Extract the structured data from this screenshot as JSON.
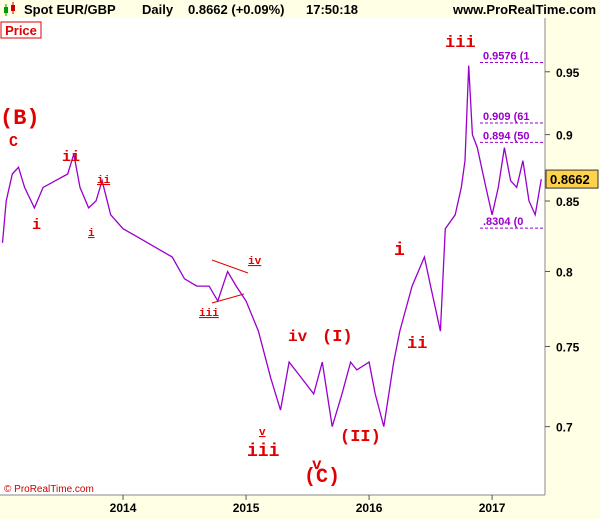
{
  "header": {
    "symbol": "Spot EUR/GBP",
    "period": "Daily",
    "quote": "0.8662 (+0.09%)",
    "time": "17:50:18",
    "site": "www.ProRealTime.com"
  },
  "panel_label": "Price",
  "copyright": "© ProRealTime.com",
  "chart_data": {
    "type": "line",
    "log_scale": true,
    "color": "#9900cc",
    "x": [
      2013.02,
      2013.05,
      2013.1,
      2013.15,
      2013.2,
      2013.28,
      2013.35,
      2013.45,
      2013.55,
      2013.6,
      2013.65,
      2013.72,
      2013.78,
      2013.83,
      2013.9,
      2014.0,
      2014.1,
      2014.2,
      2014.3,
      2014.4,
      2014.5,
      2014.6,
      2014.7,
      2014.77,
      2014.85,
      2014.92,
      2015.0,
      2015.1,
      2015.2,
      2015.28,
      2015.35,
      2015.45,
      2015.55,
      2015.62,
      2015.7,
      2015.78,
      2015.85,
      2015.9,
      2016.0,
      2016.05,
      2016.12,
      2016.2,
      2016.25,
      2016.35,
      2016.45,
      2016.5,
      2016.58,
      2016.62,
      2016.7,
      2016.75,
      2016.78,
      2016.81,
      2016.84,
      2016.88,
      2016.95,
      2017.0,
      2017.05,
      2017.1,
      2017.15,
      2017.2,
      2017.25,
      2017.3,
      2017.35,
      2017.4
    ],
    "values": [
      0.82,
      0.85,
      0.87,
      0.875,
      0.86,
      0.845,
      0.86,
      0.865,
      0.87,
      0.885,
      0.86,
      0.845,
      0.85,
      0.865,
      0.84,
      0.83,
      0.825,
      0.82,
      0.815,
      0.81,
      0.795,
      0.79,
      0.79,
      0.78,
      0.8,
      0.79,
      0.78,
      0.76,
      0.73,
      0.71,
      0.74,
      0.73,
      0.72,
      0.74,
      0.7,
      0.72,
      0.74,
      0.735,
      0.74,
      0.72,
      0.7,
      0.74,
      0.76,
      0.79,
      0.81,
      0.79,
      0.76,
      0.83,
      0.84,
      0.86,
      0.88,
      0.955,
      0.9,
      0.89,
      0.86,
      0.84,
      0.86,
      0.89,
      0.865,
      0.86,
      0.88,
      0.85,
      0.84,
      0.8662
    ],
    "xlim": [
      2013.0,
      2017.43
    ],
    "xticks": [
      2014,
      2015,
      2016,
      2017
    ],
    "ylim": [
      0.66,
      0.995
    ],
    "yticks": [
      0.7,
      0.75,
      0.8,
      0.85,
      0.9,
      0.95
    ],
    "last_value": {
      "value": 0.8662,
      "label": "0.8662"
    },
    "fib_levels": [
      {
        "value": 0.9576,
        "label": "0.9576 (1"
      },
      {
        "value": 0.909,
        "label": "0.909 (61"
      },
      {
        "value": 0.894,
        "label": "0.894 (50"
      },
      {
        "value": 0.8304,
        "label": ".8304 (0"
      }
    ],
    "annotations": [
      "(B)",
      "C",
      "i",
      "ii",
      "ii",
      "i",
      "iii",
      "iv",
      "v",
      "iii",
      "iv",
      "v",
      "(C)",
      "(I)",
      "(II)",
      "i",
      "ii",
      "iii"
    ]
  }
}
